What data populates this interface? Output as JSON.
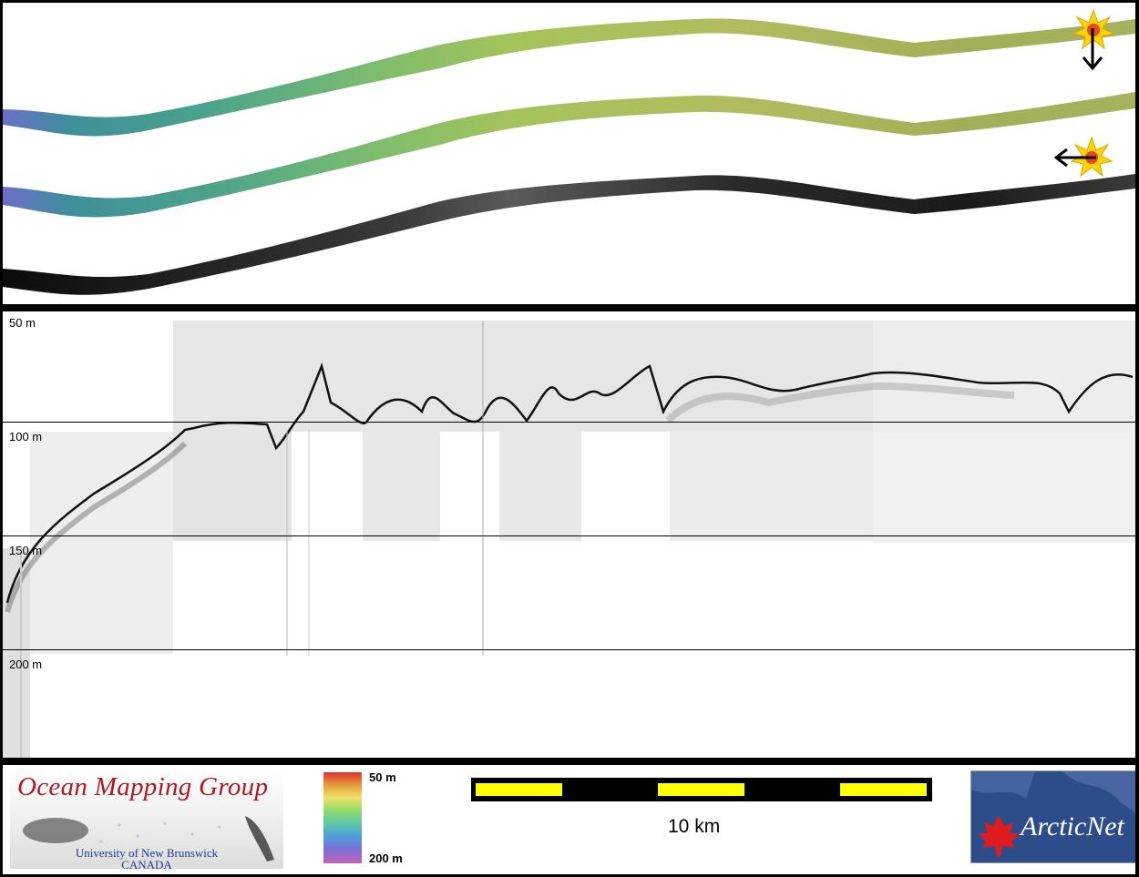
{
  "profile": {
    "depth_labels": [
      "50 m",
      "100 m",
      "150 m",
      "200 m"
    ]
  },
  "legend": {
    "colorbar_top": "50 m",
    "colorbar_bottom": "200 m",
    "scale_label": "10 km"
  },
  "logos": {
    "ocean_mapping": {
      "title": "Ocean Mapping Group",
      "line1": "University of New Brunswick",
      "line2": "CANADA"
    },
    "arcticnet": "ArcticNet"
  },
  "colors": {
    "background": "#000000",
    "panel": "#ffffff",
    "scale_fill": "#ffff00",
    "omg_red": "#b0171f",
    "unb_blue": "#1d3c8f",
    "arctic_blue": "#2d4c8a",
    "maple_red": "#e01b1b"
  },
  "icons": [
    "sun-icon",
    "arrow-down-icon",
    "arrow-left-icon",
    "maple-leaf-icon"
  ]
}
